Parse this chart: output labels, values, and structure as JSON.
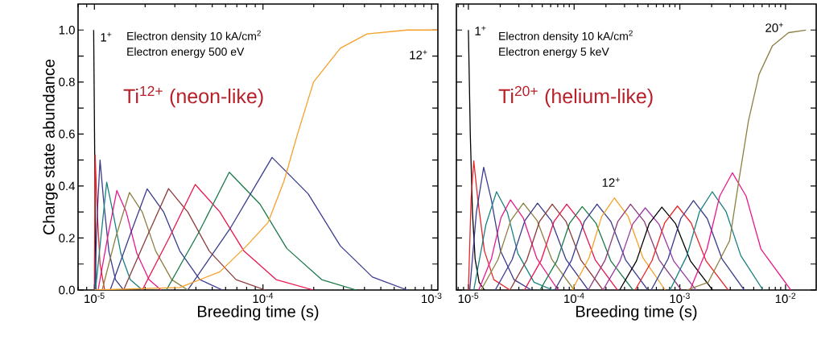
{
  "chart_data": [
    {
      "type": "line",
      "log": "x",
      "xlabel": "Breeding time (s)",
      "ylabel": "Charge state abundance",
      "xlim": [
        8e-06,
        0.00109
      ],
      "ylim": [
        0,
        1.1
      ],
      "xticks": [
        {
          "value": 1e-05,
          "label": "10$^{-5}$"
        },
        {
          "value": 0.0001,
          "label": "10$^{-4}$"
        },
        {
          "value": 0.001,
          "label": "10$^{-3}$"
        }
      ],
      "yticks": [
        {
          "value": 0,
          "label": "0.0"
        },
        {
          "value": 0.1,
          "label": null
        },
        {
          "value": 0.2,
          "label": "0.2"
        },
        {
          "value": 0.3,
          "label": null
        },
        {
          "value": 0.4,
          "label": "0.4"
        },
        {
          "value": 0.5,
          "label": null
        },
        {
          "value": 0.6,
          "label": "0.6"
        },
        {
          "value": 0.7,
          "label": null
        },
        {
          "value": 0.8,
          "label": "0.8"
        },
        {
          "value": 0.9,
          "label": null
        },
        {
          "value": 1.0,
          "label": "1.0"
        }
      ],
      "grid": false,
      "annotations": [
        "Electron density 10 kA/cm$^{2}$",
        "Electron energy 500 eV",
        "Ti$^{12+}$ (neon-like)",
        "1$^{+}$",
        "12$^{+}$"
      ],
      "series": [
        {
          "color": "#000000",
          "x": [
            9.9e-06,
            1.02e-05
          ],
          "values": [
            1.0,
            0
          ]
        },
        {
          "color": "#e8262a",
          "x": [
            1e-05,
            1.01e-05,
            1.04e-05,
            1.08e-05,
            1.15e-05
          ],
          "values": [
            0,
            0.52,
            0.3,
            0.1,
            0
          ]
        },
        {
          "color": "#3b3b8f",
          "x": [
            1.004e-05,
            1.041e-05,
            1.08e-05,
            1.132e-05,
            1.218e-05,
            1.334e-05,
            1.489e-05
          ],
          "values": [
            0,
            0.3,
            0.5,
            0.35,
            0.15,
            0.04,
            0
          ]
        },
        {
          "color": "#1a8080",
          "x": [
            1.015e-05,
            1.092e-05,
            1.183e-05,
            1.287e-05,
            1.436e-05,
            1.632e-05,
            1.923e-05
          ],
          "values": [
            0,
            0.2,
            0.415,
            0.3,
            0.14,
            0.04,
            0
          ]
        },
        {
          "color": "#e8198c",
          "x": [
            1.052e-05,
            1.196e-05,
            1.359e-05,
            1.545e-05,
            1.788e-05,
            2.108e-05,
            2.484e-05
          ],
          "values": [
            0,
            0.2,
            0.383,
            0.3,
            0.14,
            0.04,
            0
          ]
        },
        {
          "color": "#8c8040",
          "x": [
            1.112e-05,
            1.334e-05,
            1.614e-05,
            1.923e-05,
            2.31e-05,
            2.875e-05,
            3.58e-05
          ],
          "values": [
            0,
            0.2,
            0.375,
            0.3,
            0.15,
            0.04,
            0
          ]
        },
        {
          "color": "#3b3b8f",
          "x": [
            1.241e-05,
            1.602e-05,
            2.055e-05,
            2.576e-05,
            3.21e-05,
            4.22e-05,
            5.75e-05
          ],
          "values": [
            0,
            0.2,
            0.389,
            0.3,
            0.15,
            0.04,
            0
          ]
        },
        {
          "color": "#8c3c3c",
          "x": [
            1.489e-05,
            2.032e-05,
            2.753e-05,
            3.58e-05,
            4.8e-05,
            6.92e-05,
            0.0001033
          ],
          "values": [
            0,
            0.2,
            0.39,
            0.3,
            0.15,
            0.04,
            0
          ]
        },
        {
          "color": "#e8174f",
          "x": [
            1.923e-05,
            2.773e-05,
            3.963e-05,
            5.55e-05,
            7.71e-05,
            0.0001197,
            0.0001995
          ],
          "values": [
            0,
            0.2,
            0.406,
            0.3,
            0.15,
            0.04,
            0
          ]
        },
        {
          "color": "#1a7a4a",
          "x": [
            2.673e-05,
            4.146e-05,
            6.31e-05,
            9.61e-05,
            0.0001384,
            0.0002228,
            0.000358
          ],
          "values": [
            0,
            0.22,
            0.453,
            0.33,
            0.16,
            0.04,
            0
          ]
        },
        {
          "color": "#3b3b8f",
          "x": [
            3.58e-05,
            6.43e-05,
            0.0001132,
            0.0001854,
            0.0002875,
            0.000446,
            0.000718
          ],
          "values": [
            0,
            0.24,
            0.51,
            0.37,
            0.17,
            0.05,
            0
          ]
        },
        {
          "color": "#f5a02a",
          "x": [
            1e-05,
            3.21e-05,
            5.55e-05,
            8e-05,
            0.0001072,
            0.0001334,
            0.0001603,
            0.0001995,
            0.0002875,
            0.000414,
            0.000718,
            0.00108
          ],
          "values": [
            0,
            0.01,
            0.07,
            0.17,
            0.26,
            0.42,
            0.6,
            0.8,
            0.93,
            0.985,
            1.0,
            1.0
          ]
        }
      ]
    },
    {
      "type": "line",
      "log": "x",
      "xlabel": "Breeding time (s)",
      "tick_labels": "x",
      "xlim": [
        7.7e-06,
        0.0195
      ],
      "ylim": [
        0,
        1.1
      ],
      "xticks": [
        {
          "value": 1e-05,
          "label": "10$^{-5}$"
        },
        {
          "value": 0.0001,
          "label": "10$^{-4}$"
        },
        {
          "value": 0.001,
          "label": "10$^{-3}$"
        },
        {
          "value": 0.01,
          "label": "10$^{-2}$"
        }
      ],
      "yticks": [
        {
          "value": 0,
          "label": null
        },
        {
          "value": 0.1,
          "label": null
        },
        {
          "value": 0.2,
          "label": null
        },
        {
          "value": 0.3,
          "label": null
        },
        {
          "value": 0.4,
          "label": null
        },
        {
          "value": 0.5,
          "label": null
        },
        {
          "value": 0.6,
          "label": null
        },
        {
          "value": 0.7,
          "label": null
        },
        {
          "value": 0.8,
          "label": null
        },
        {
          "value": 0.9,
          "label": null
        },
        {
          "value": 1.0,
          "label": null
        }
      ],
      "grid": false,
      "annotations": [
        "Electron density 10 kA/cm$^{2}$",
        "Electron energy 5 keV",
        "Ti$^{20+}$ (helium-like)",
        "1$^{+}$",
        "12$^{+}$",
        "20$^{+}$"
      ],
      "series": [
        {
          "color": "#000000",
          "x": [
            1e-05,
            1.042e-05,
            1.092e-05,
            1.157e-05,
            1.263e-05,
            1.419e-05
          ],
          "values": [
            1.0,
            0.6,
            0.3,
            0.12,
            0.03,
            0
          ]
        },
        {
          "color": "#e8262a",
          "x": [
            1e-05,
            1.06e-05,
            1.124e-05,
            1.226e-05,
            1.419e-05,
            1.741e-05,
            2.472e-05
          ],
          "values": [
            0,
            0.35,
            0.497,
            0.35,
            0.15,
            0.04,
            0
          ]
        },
        {
          "color": "#3b3b8f",
          "x": [
            1.03e-05,
            1.191e-05,
            1.395e-05,
            1.643e-05,
            2.014e-05,
            2.698e-05,
            3.94e-05
          ],
          "values": [
            0,
            0.3,
            0.472,
            0.35,
            0.15,
            0.04,
            0
          ]
        },
        {
          "color": "#1a8080",
          "x": [
            1.124e-05,
            1.462e-05,
            1.845e-05,
            2.332e-05,
            2.944e-05,
            4.18e-05,
            6.28e-05
          ],
          "values": [
            0,
            0.25,
            0.378,
            0.3,
            0.14,
            0.03,
            0
          ]
        },
        {
          "color": "#e8198c",
          "x": [
            1.253e-05,
            1.652e-05,
            2.032e-05,
            2.5e-05,
            3.296e-05,
            4.446e-05,
            7.05e-05
          ],
          "values": [
            0,
            0.121,
            0.278,
            0.347,
            0.278,
            0.121,
            0
          ]
        },
        {
          "color": "#8c8040",
          "x": [
            1.318e-05,
            1.905e-05,
            2.512e-05,
            3.311e-05,
            4.467e-05,
            6.166e-05,
            0.0001
          ],
          "values": [
            0,
            0.117,
            0.267,
            0.334,
            0.267,
            0.117,
            0
          ]
        },
        {
          "color": "#3b3b8f",
          "x": [
            1.795e-05,
            2.594e-05,
            3.42e-05,
            4.508e-05,
            6.081e-05,
            8.39e-05,
            0.0001361
          ],
          "values": [
            0,
            0.117,
            0.267,
            0.334,
            0.267,
            0.117,
            0
          ]
        },
        {
          "color": "#8c3c3c",
          "x": [
            2.472e-05,
            3.573e-05,
            4.71e-05,
            6.21e-05,
            8.375e-05,
            0.0001156,
            0.0001875
          ],
          "values": [
            0,
            0.116,
            0.264,
            0.33,
            0.264,
            0.116,
            0
          ]
        },
        {
          "color": "#e8174f",
          "x": [
            3.388e-05,
            4.898e-05,
            6.457e-05,
            8.511e-05,
            0.0001148,
            0.0001585,
            0.000257
          ],
          "values": [
            0,
            0.116,
            0.264,
            0.33,
            0.264,
            0.116,
            0
          ]
        },
        {
          "color": "#1a7a4a",
          "x": [
            4.753e-05,
            6.871e-05,
            9.057e-05,
            0.0001194,
            0.0001611,
            0.0002223,
            0.0003606
          ],
          "values": [
            0,
            0.112,
            0.257,
            0.321,
            0.257,
            0.112,
            0
          ]
        },
        {
          "color": "#3b3b8f",
          "x": [
            6.561e-05,
            9.484e-05,
            0.000125,
            0.0001648,
            0.0002223,
            0.0003069,
            0.0004977
          ],
          "values": [
            0,
            0.116,
            0.264,
            0.33,
            0.264,
            0.116,
            0
          ]
        },
        {
          "color": "#f5a02a",
          "x": [
            9.572e-05,
            0.0001384,
            0.0001824,
            0.0002404,
            0.0003243,
            0.0004477,
            0.0007261
          ],
          "values": [
            0,
            0.124,
            0.283,
            0.354,
            0.283,
            0.124,
            0
          ]
        },
        {
          "color": "#8c3c78",
          "x": [
            0.0001361,
            0.0001968,
            0.0002594,
            0.000342,
            0.0004613,
            0.0006368,
            0.001033
          ],
          "values": [
            0,
            0.116,
            0.264,
            0.33,
            0.264,
            0.116,
            0
          ]
        },
        {
          "color": "#9b3aa8",
          "x": [
            0.0001875,
            0.000271,
            0.0003573,
            0.000471,
            0.0006353,
            0.000877,
            0.001422
          ],
          "values": [
            0,
            0.111,
            0.253,
            0.316,
            0.253,
            0.111,
            0
          ]
        },
        {
          "color": "#000000",
          "x": [
            0.0002692,
            0.000389,
            0.0005129,
            0.0006761,
            0.000912,
            0.001259,
            0.002042
          ],
          "values": [
            0,
            0.112,
            0.255,
            0.319,
            0.255,
            0.112,
            0
          ]
        },
        {
          "color": "#e8262a",
          "x": [
            0.0003776,
            0.0005458,
            0.0007194,
            0.0009484,
            0.001279,
            0.001766,
            0.002864
          ],
          "values": [
            0,
            0.113,
            0.258,
            0.323,
            0.258,
            0.113,
            0
          ]
        },
        {
          "color": "#3b3b8f",
          "x": [
            0.0005358,
            0.0007745,
            0.001021,
            0.001346,
            0.001816,
            0.002506,
            0.004064
          ],
          "values": [
            0,
            0.12,
            0.275,
            0.344,
            0.275,
            0.12,
            0
          ]
        },
        {
          "color": "#1a8080",
          "x": [
            0.0008072,
            0.001167,
            0.001538,
            0.002028,
            0.002735,
            0.003776,
            0.006124
          ],
          "values": [
            0,
            0.132,
            0.302,
            0.378,
            0.302,
            0.132,
            0
          ]
        },
        {
          "color": "#e8198c",
          "x": [
            0.00125,
            0.001807,
            0.002382,
            0.003141,
            0.004236,
            0.005848,
            0.01122
          ],
          "values": [
            0,
            0.158,
            0.361,
            0.451,
            0.361,
            0.158,
            0
          ]
        },
        {
          "color": "#8c8040",
          "x": [
            0.001164,
            0.001858,
            0.002958,
            0.003631,
            0.004457,
            0.005623,
            0.007534,
            0.01069,
            0.01563
          ],
          "values": [
            0,
            0.03,
            0.19,
            0.425,
            0.65,
            0.83,
            0.94,
            0.99,
            1.0
          ]
        }
      ]
    }
  ]
}
